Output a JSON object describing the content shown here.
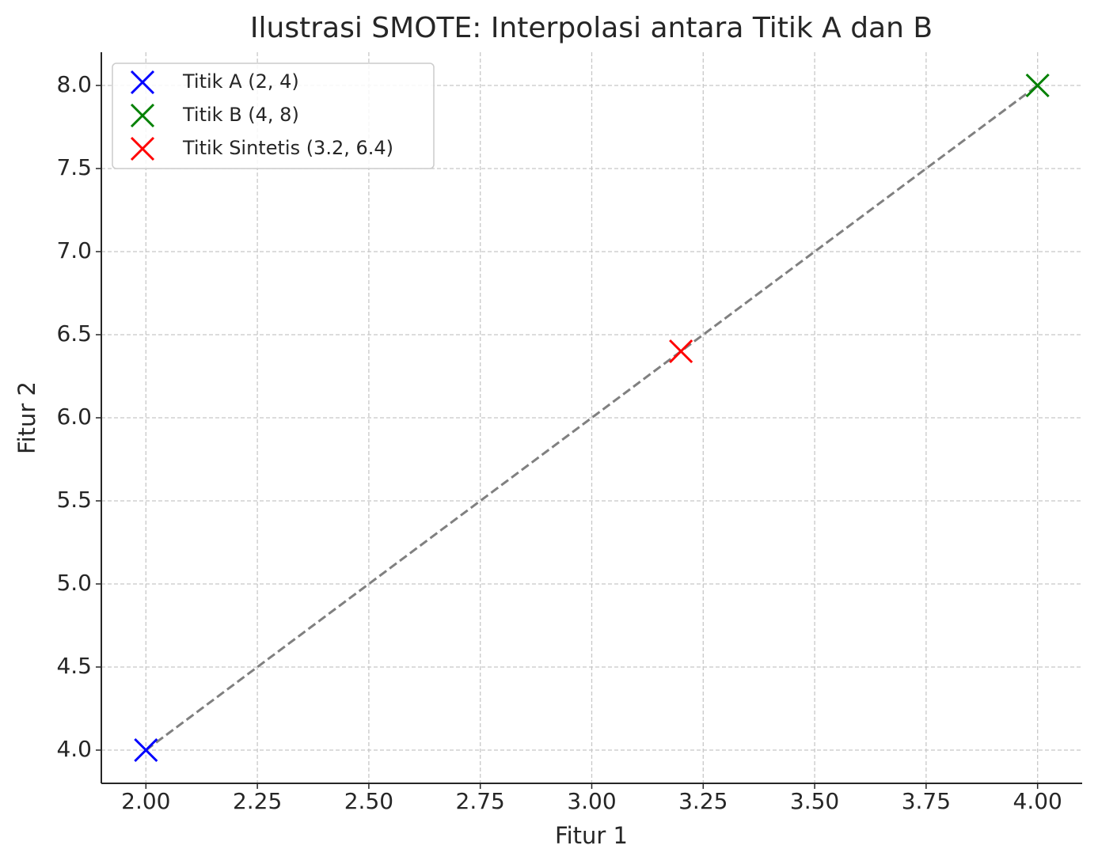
{
  "chart_data": {
    "type": "scatter",
    "title": "Ilustrasi SMOTE: Interpolasi antara Titik A dan B",
    "xlabel": "Fitur 1",
    "ylabel": "Fitur 2",
    "xlim": [
      1.9,
      4.1
    ],
    "ylim": [
      3.8,
      8.2
    ],
    "xticks": [
      {
        "value": 2,
        "label": "2.00"
      },
      {
        "value": 2.25,
        "label": "2.25"
      },
      {
        "value": 2.5,
        "label": "2.50"
      },
      {
        "value": 2.75,
        "label": "2.75"
      },
      {
        "value": 3,
        "label": "3.00"
      },
      {
        "value": 3.25,
        "label": "3.25"
      },
      {
        "value": 3.5,
        "label": "3.50"
      },
      {
        "value": 3.75,
        "label": "3.75"
      },
      {
        "value": 4,
        "label": "4.00"
      }
    ],
    "yticks": [
      {
        "value": 4,
        "label": "4.0"
      },
      {
        "value": 4.5,
        "label": "4.5"
      },
      {
        "value": 5,
        "label": "5.0"
      },
      {
        "value": 5.5,
        "label": "5.5"
      },
      {
        "value": 6,
        "label": "6.0"
      },
      {
        "value": 6.5,
        "label": "6.5"
      },
      {
        "value": 7,
        "label": "7.0"
      },
      {
        "value": 7.5,
        "label": "7.5"
      },
      {
        "value": 8,
        "label": "8.0"
      }
    ],
    "grid": true,
    "legend": "upper left",
    "lines": [
      {
        "x": [
          2,
          4
        ],
        "values": [
          4,
          8
        ],
        "color": "#808080",
        "style": "dashed"
      }
    ],
    "series": [
      {
        "name": "Titik A (2, 4)",
        "color": "#0000ff",
        "x": [
          2
        ],
        "values": [
          4
        ]
      },
      {
        "name": "Titik B (4, 8)",
        "color": "#008000",
        "x": [
          4
        ],
        "values": [
          8
        ]
      },
      {
        "name": "Titik Sintetis (3.2, 6.4)",
        "color": "#ff0000",
        "x": [
          3.2
        ],
        "values": [
          6.4
        ]
      }
    ]
  }
}
